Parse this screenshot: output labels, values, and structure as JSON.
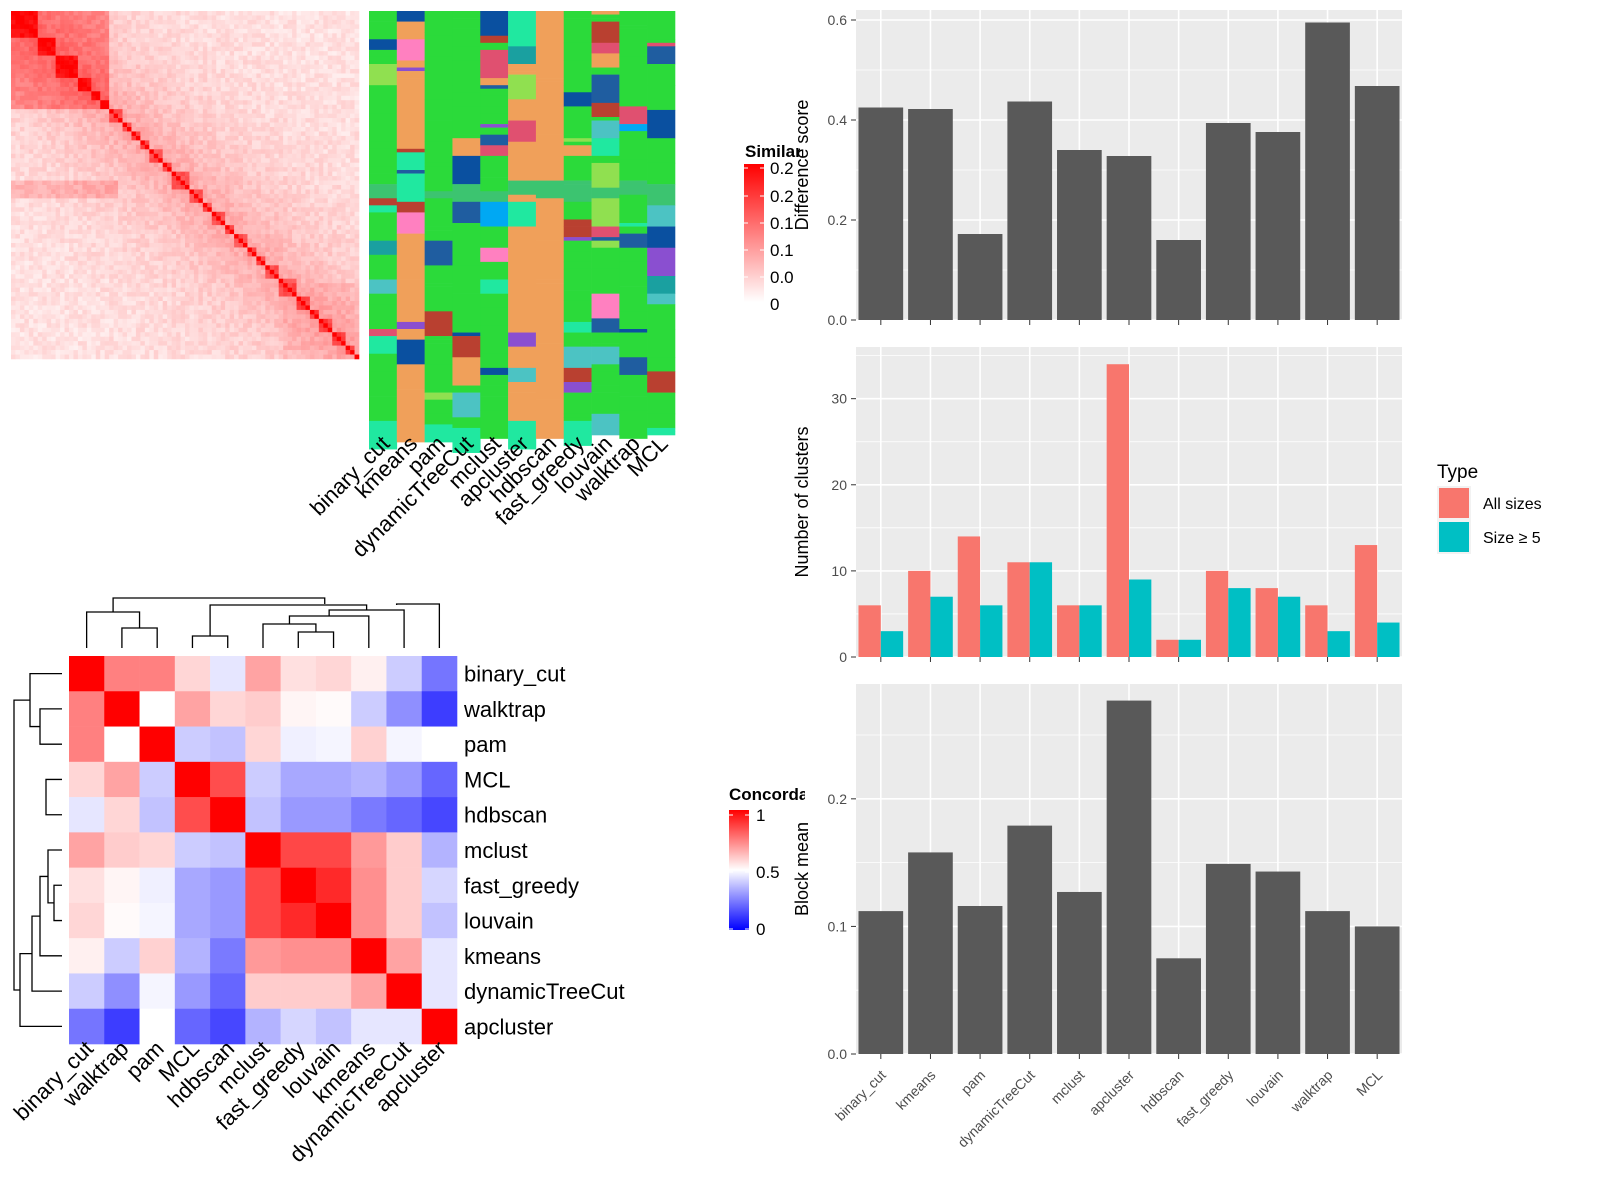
{
  "colors": {
    "red": "#ff0000",
    "blue": "#0000ff",
    "white": "#ffffff",
    "bar_dark": "#595959",
    "panel_bg": "#ebebeb",
    "all_sizes": "#f8766d",
    "size_ge5": "#00bfc4"
  },
  "chart_data": [
    {
      "type": "heatmap",
      "id": "similarity-heatmap",
      "legend_title": "Similarity",
      "legend_ticks": [
        "0.2",
        "0.2",
        "0.1",
        "0.1",
        "0.0",
        "0"
      ],
      "annotation_columns": [
        "binary_cut",
        "kmeans",
        "pam",
        "dynamicTreeCut",
        "mclust",
        "apcluster",
        "hdbscan",
        "fast_greedy",
        "louvain",
        "walktrap",
        "MCL"
      ]
    },
    {
      "type": "heatmap",
      "id": "concordance-heatmap",
      "legend_title": "Concordance",
      "legend_ticks": [
        "1",
        "0.5",
        "0"
      ],
      "row_labels": [
        "binary_cut",
        "walktrap",
        "pam",
        "MCL",
        "hdbscan",
        "mclust",
        "fast_greedy",
        "louvain",
        "kmeans",
        "dynamicTreeCut",
        "apcluster"
      ],
      "col_labels": [
        "binary_cut",
        "walktrap",
        "pam",
        "MCL",
        "hdbscan",
        "mclust",
        "fast_greedy",
        "louvain",
        "kmeans",
        "dynamicTreeCut",
        "apcluster"
      ],
      "values": [
        [
          1.0,
          0.75,
          0.75,
          0.58,
          0.45,
          0.68,
          0.56,
          0.58,
          0.53,
          0.4,
          0.23
        ],
        [
          0.75,
          1.0,
          0.5,
          0.68,
          0.58,
          0.6,
          0.52,
          0.51,
          0.4,
          0.28,
          0.12
        ],
        [
          0.75,
          0.5,
          1.0,
          0.4,
          0.38,
          0.58,
          0.47,
          0.48,
          0.59,
          0.48,
          0.5
        ],
        [
          0.58,
          0.68,
          0.4,
          1.0,
          0.85,
          0.4,
          0.33,
          0.33,
          0.35,
          0.3,
          0.2
        ],
        [
          0.45,
          0.58,
          0.38,
          0.85,
          1.0,
          0.38,
          0.3,
          0.3,
          0.24,
          0.2,
          0.14
        ],
        [
          0.68,
          0.6,
          0.58,
          0.4,
          0.38,
          1.0,
          0.86,
          0.86,
          0.7,
          0.6,
          0.35
        ],
        [
          0.56,
          0.52,
          0.47,
          0.33,
          0.3,
          0.86,
          1.0,
          0.92,
          0.72,
          0.6,
          0.42
        ],
        [
          0.58,
          0.51,
          0.48,
          0.33,
          0.3,
          0.86,
          0.92,
          1.0,
          0.72,
          0.6,
          0.38
        ],
        [
          0.53,
          0.4,
          0.59,
          0.35,
          0.24,
          0.7,
          0.72,
          0.72,
          1.0,
          0.68,
          0.45
        ],
        [
          0.4,
          0.28,
          0.48,
          0.3,
          0.2,
          0.6,
          0.6,
          0.6,
          0.68,
          1.0,
          0.45
        ],
        [
          0.23,
          0.12,
          0.5,
          0.2,
          0.14,
          0.35,
          0.42,
          0.38,
          0.45,
          0.45,
          1.0
        ]
      ]
    },
    {
      "type": "bar",
      "id": "difference-score",
      "categories": [
        "binary_cut",
        "kmeans",
        "pam",
        "dynamicTreeCut",
        "mclust",
        "apcluster",
        "hdbscan",
        "fast_greedy",
        "louvain",
        "walktrap",
        "MCL"
      ],
      "values": [
        0.425,
        0.422,
        0.172,
        0.437,
        0.34,
        0.328,
        0.16,
        0.394,
        0.376,
        0.595,
        0.468
      ],
      "ylabel": "Difference score",
      "ylim": [
        0,
        0.62
      ],
      "yticks": [
        0.0,
        0.2,
        0.4,
        0.6
      ],
      "ytick_labels": [
        "0.0",
        "0.2",
        "0.4",
        "0.6"
      ]
    },
    {
      "type": "bar",
      "id": "number-of-clusters",
      "categories": [
        "binary_cut",
        "kmeans",
        "pam",
        "dynamicTreeCut",
        "mclust",
        "apcluster",
        "hdbscan",
        "fast_greedy",
        "louvain",
        "walktrap",
        "MCL"
      ],
      "series": [
        {
          "name": "All sizes",
          "values": [
            6,
            10,
            14,
            11,
            6,
            34,
            2,
            10,
            8,
            6,
            13
          ]
        },
        {
          "name": "Size ≥ 5",
          "values": [
            3,
            7,
            6,
            11,
            6,
            9,
            2,
            8,
            7,
            3,
            4
          ]
        }
      ],
      "ylabel": "Number of clusters",
      "ylim": [
        0,
        36
      ],
      "yticks": [
        0,
        10,
        20,
        30
      ],
      "ytick_labels": [
        "0",
        "10",
        "20",
        "30"
      ],
      "legend_title": "Type",
      "legend_position": "right"
    },
    {
      "type": "bar",
      "id": "block-mean",
      "categories": [
        "binary_cut",
        "kmeans",
        "pam",
        "dynamicTreeCut",
        "mclust",
        "apcluster",
        "hdbscan",
        "fast_greedy",
        "louvain",
        "walktrap",
        "MCL"
      ],
      "values": [
        0.112,
        0.158,
        0.116,
        0.179,
        0.127,
        0.277,
        0.075,
        0.149,
        0.143,
        0.112,
        0.1
      ],
      "ylabel": "Block mean",
      "ylim": [
        0,
        0.29
      ],
      "yticks": [
        0.0,
        0.1,
        0.2
      ],
      "ytick_labels": [
        "0.0",
        "0.1",
        "0.2"
      ]
    }
  ]
}
